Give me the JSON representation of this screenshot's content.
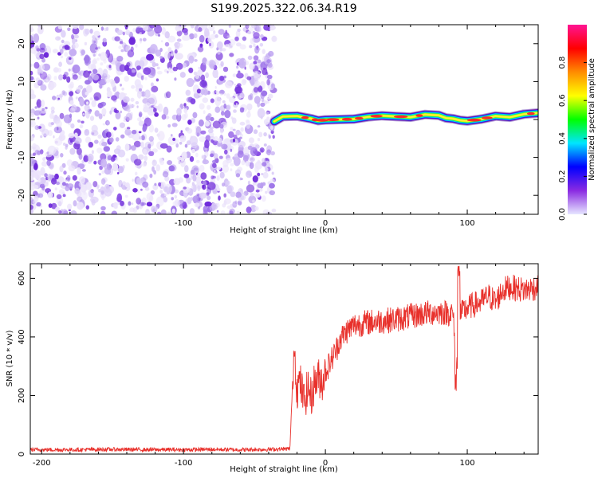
{
  "title": "S199.2025.322.06.34.R19",
  "chart_data": [
    {
      "type": "heatmap",
      "title": "S199.2025.322.06.34.R19",
      "xlabel": "Height of straight line (km)",
      "ylabel": "Frequency (Hz)",
      "xlim": [
        -208,
        150
      ],
      "ylim": [
        -25,
        25
      ],
      "x_ticks": [
        -200,
        -100,
        0,
        100
      ],
      "y_ticks": [
        -20,
        -10,
        0,
        10,
        20
      ],
      "noise_region_x": [
        -208,
        -36
      ],
      "signal_trace": {
        "x": [
          -36,
          -30,
          -20,
          -10,
          -5,
          0,
          10,
          20,
          30,
          40,
          50,
          60,
          70,
          80,
          85,
          90,
          95,
          100,
          110,
          120,
          130,
          140,
          150
        ],
        "freq": [
          -0.5,
          0.8,
          0.9,
          0.2,
          -0.3,
          -0.1,
          0.0,
          0.1,
          0.7,
          1.0,
          0.8,
          0.6,
          1.3,
          1.1,
          0.4,
          0.2,
          -0.2,
          -0.4,
          0.1,
          0.9,
          0.6,
          1.4,
          1.7
        ]
      },
      "colorbar": {
        "label": "Normalized spectral amplitude",
        "range": [
          0,
          1
        ],
        "ticks": [
          0.0,
          0.2,
          0.4,
          0.6,
          0.8
        ],
        "colors": [
          "#e6e6ff",
          "#8a2be2",
          "#0000ff",
          "#00e5ff",
          "#00ff00",
          "#ffff00",
          "#ff8c00",
          "#ff0000",
          "#ff1493"
        ]
      }
    },
    {
      "type": "line",
      "xlabel": "Height of straight line (km)",
      "ylabel": "SNR (10 * v/v)",
      "xlim": [
        -208,
        150
      ],
      "ylim": [
        0,
        650
      ],
      "x_ticks": [
        -200,
        -100,
        0,
        100
      ],
      "y_ticks": [
        0,
        200,
        400,
        600
      ],
      "color": "#e8302b",
      "series": [
        {
          "name": "SNR",
          "x": [
            -208,
            -180,
            -150,
            -120,
            -100,
            -80,
            -60,
            -40,
            -25,
            -22,
            -20,
            -18,
            -15,
            -12,
            -10,
            -8,
            -5,
            -2,
            0,
            3,
            5,
            8,
            10,
            15,
            20,
            25,
            30,
            40,
            50,
            60,
            70,
            80,
            90,
            92,
            94,
            96,
            100,
            110,
            115,
            120,
            125,
            130,
            140,
            150
          ],
          "y": [
            15,
            15,
            16,
            15,
            15,
            16,
            15,
            16,
            18,
            380,
            220,
            250,
            180,
            230,
            190,
            240,
            260,
            250,
            280,
            310,
            330,
            360,
            390,
            420,
            440,
            445,
            450,
            455,
            460,
            470,
            480,
            485,
            480,
            300,
            470,
            480,
            500,
            520,
            540,
            520,
            560,
            570,
            560,
            570
          ]
        }
      ]
    }
  ]
}
